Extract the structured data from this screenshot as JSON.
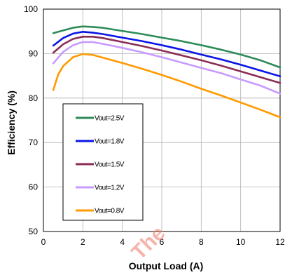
{
  "chart_data": {
    "type": "line",
    "title": "",
    "xlabel": "Output Load (A)",
    "ylabel": "Efficiency (%)",
    "xlim": [
      0,
      12
    ],
    "ylim": [
      50,
      100
    ],
    "xticks": [
      0,
      2,
      4,
      6,
      8,
      10,
      12
    ],
    "yticks": [
      50,
      60,
      70,
      80,
      90,
      100
    ],
    "grid": true,
    "legend_position": "lower-left",
    "watermark": "The ... o...",
    "series": [
      {
        "name": "Vout=2.5V",
        "color": "#2e8b57",
        "x": [
          0.5,
          1,
          1.5,
          2,
          2.5,
          3,
          4,
          5,
          6,
          7,
          8,
          9,
          10,
          11,
          12
        ],
        "y": [
          94.6,
          95.2,
          95.8,
          96.1,
          96.0,
          95.8,
          95.1,
          94.4,
          93.6,
          92.8,
          91.9,
          90.9,
          89.8,
          88.5,
          86.9
        ]
      },
      {
        "name": "Vout=1.8V",
        "color": "#0a14e6",
        "x": [
          0.5,
          1,
          1.5,
          2,
          2.5,
          3,
          4,
          5,
          6,
          7,
          8,
          9,
          10,
          11,
          12
        ],
        "y": [
          91.8,
          93.5,
          94.5,
          94.9,
          94.7,
          94.4,
          93.6,
          92.8,
          91.9,
          90.9,
          89.8,
          88.7,
          87.5,
          86.2,
          84.9
        ]
      },
      {
        "name": "Vout=1.5V",
        "color": "#8b2d55",
        "x": [
          0.5,
          1,
          1.5,
          2,
          2.5,
          3,
          4,
          5,
          6,
          7,
          8,
          9,
          10,
          11,
          12
        ],
        "y": [
          90.2,
          92.1,
          93.3,
          93.8,
          93.8,
          93.5,
          92.6,
          91.7,
          90.7,
          89.6,
          88.5,
          87.3,
          86.0,
          84.7,
          83.4
        ]
      },
      {
        "name": "Vout=1.2V",
        "color": "#c89bff",
        "x": [
          0.5,
          1,
          1.5,
          2,
          2.5,
          3,
          4,
          5,
          6,
          7,
          8,
          9,
          10,
          11,
          12
        ],
        "y": [
          87.8,
          90.4,
          91.9,
          92.6,
          92.6,
          92.2,
          91.3,
          90.3,
          89.2,
          88.0,
          86.8,
          85.6,
          84.2,
          82.8,
          81.0
        ]
      },
      {
        "name": "Vout=0.8V",
        "color": "#ff9a00",
        "x": [
          0.5,
          0.75,
          1,
          1.5,
          2,
          2.5,
          3,
          4,
          5,
          6,
          7,
          8,
          9,
          10,
          11,
          12
        ],
        "y": [
          81.8,
          85.3,
          87.2,
          89.2,
          89.9,
          89.7,
          89.1,
          87.9,
          86.6,
          85.2,
          83.7,
          82.1,
          80.6,
          79.0,
          77.4,
          75.7
        ]
      }
    ]
  }
}
